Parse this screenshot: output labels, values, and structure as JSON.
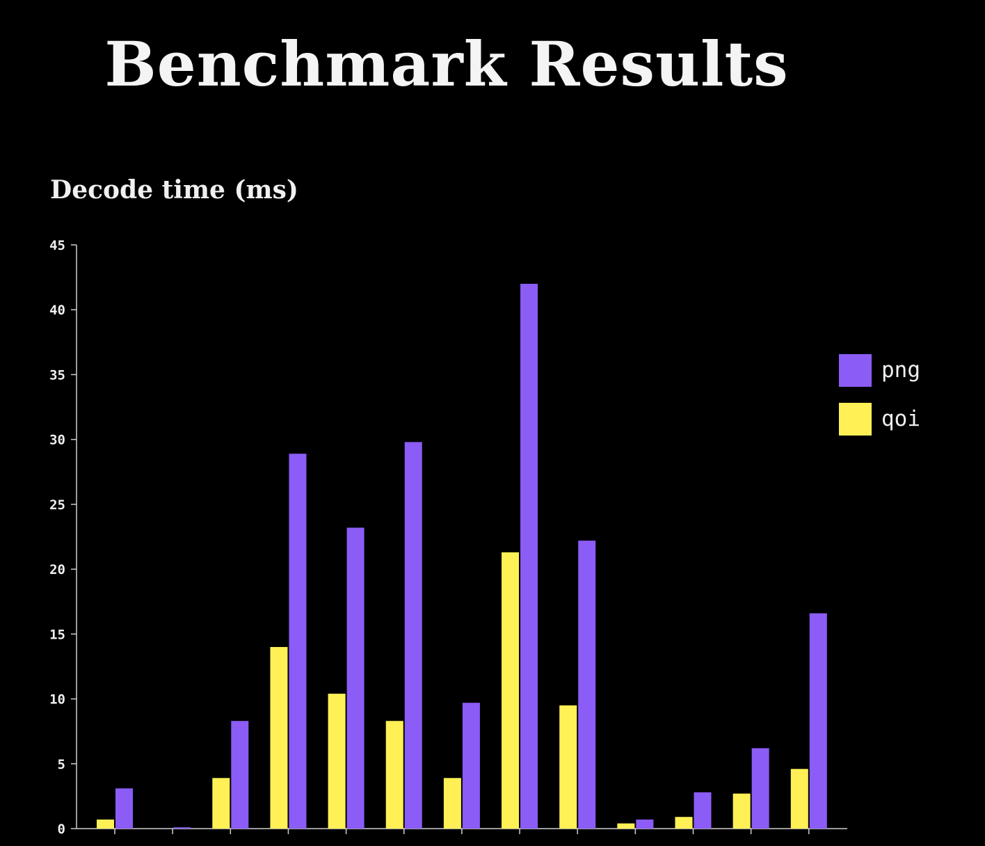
{
  "chart_data": {
    "type": "bar",
    "title": "Benchmark Results",
    "subtitle": "Decode time (ms)",
    "xlabel": "",
    "ylabel": "",
    "ylim": [
      0,
      45
    ],
    "yticks": [
      "0",
      "5",
      "10",
      "15",
      "20",
      "25",
      "30",
      "35",
      "40",
      "45"
    ],
    "grid": false,
    "legend_position": "right",
    "group_count": 13,
    "series": [
      {
        "name": "png",
        "color": "#8b5cf6",
        "values": [
          3.1,
          0.1,
          8.3,
          28.9,
          23.2,
          29.8,
          9.7,
          42.0,
          22.2,
          0.7,
          2.8,
          6.2,
          16.6
        ]
      },
      {
        "name": "qoi",
        "color": "#fff155",
        "values": [
          0.7,
          0,
          3.9,
          14.0,
          10.4,
          8.3,
          3.9,
          21.3,
          9.5,
          0.4,
          0.9,
          2.7,
          4.6
        ]
      }
    ]
  }
}
